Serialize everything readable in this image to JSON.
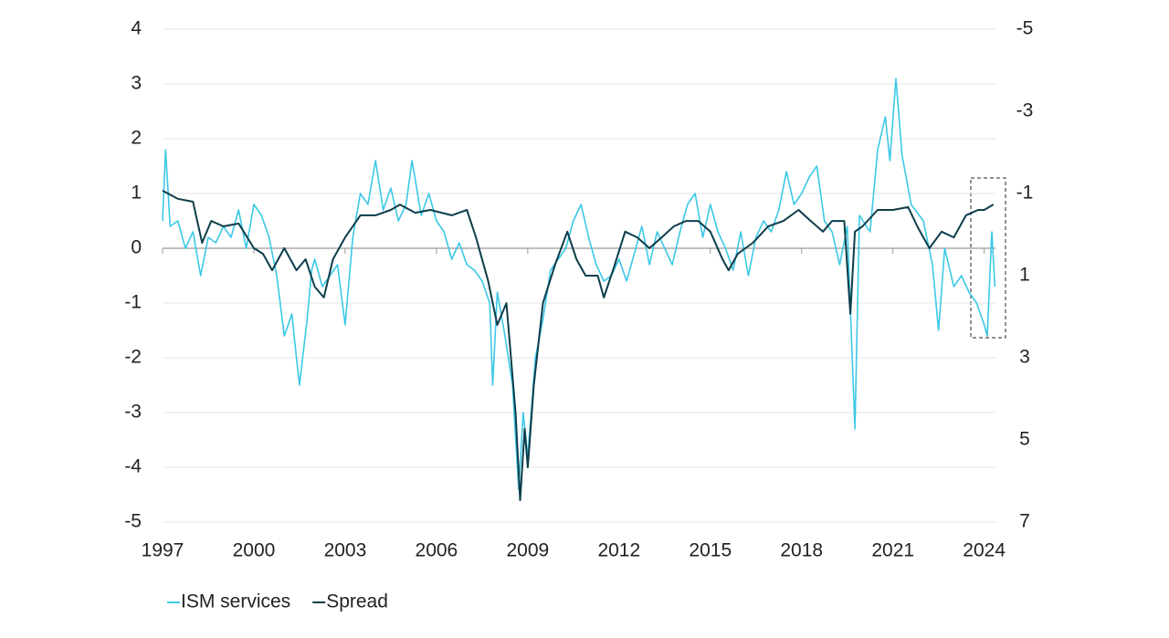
{
  "chart_data": {
    "type": "line",
    "xlim": [
      1997,
      2024.37
    ],
    "xticks": [
      1997,
      2000,
      2003,
      2006,
      2009,
      2012,
      2015,
      2018,
      2021,
      2024
    ],
    "ylim": [
      -5,
      4
    ],
    "yticks": [
      -5,
      -4,
      -3,
      -2,
      -1,
      0,
      1,
      2,
      3,
      4
    ],
    "y2lim": [
      7,
      -5
    ],
    "y2ticks": [
      -5,
      -3,
      -1,
      1,
      3,
      5,
      7
    ],
    "grid": true,
    "series": [
      {
        "name": "ISM services",
        "color": "#3cc8e6",
        "axis": "y",
        "x": [
          1997.0,
          1997.1,
          1997.25,
          1997.5,
          1997.75,
          1998.0,
          1998.25,
          1998.5,
          1998.75,
          1999.0,
          1999.25,
          1999.5,
          1999.75,
          2000.0,
          2000.25,
          2000.5,
          2000.75,
          2001.0,
          2001.25,
          2001.4,
          2001.5,
          2001.75,
          2001.9,
          2002.0,
          2002.25,
          2002.5,
          2002.75,
          2003.0,
          2003.25,
          2003.5,
          2003.75,
          2004.0,
          2004.25,
          2004.5,
          2004.75,
          2005.0,
          2005.2,
          2005.5,
          2005.75,
          2006.0,
          2006.25,
          2006.5,
          2006.75,
          2007.0,
          2007.25,
          2007.5,
          2007.75,
          2007.85,
          2008.0,
          2008.25,
          2008.5,
          2008.7,
          2008.85,
          2009.0,
          2009.25,
          2009.5,
          2009.75,
          2010.0,
          2010.25,
          2010.5,
          2010.75,
          2011.0,
          2011.25,
          2011.5,
          2011.75,
          2012.0,
          2012.25,
          2012.5,
          2012.75,
          2013.0,
          2013.25,
          2013.5,
          2013.75,
          2014.0,
          2014.25,
          2014.5,
          2014.75,
          2015.0,
          2015.25,
          2015.5,
          2015.75,
          2016.0,
          2016.25,
          2016.5,
          2016.75,
          2017.0,
          2017.25,
          2017.5,
          2017.75,
          2018.0,
          2018.25,
          2018.5,
          2018.75,
          2019.0,
          2019.25,
          2019.5,
          2019.75,
          2019.9,
          2020.25,
          2020.5,
          2020.75,
          2020.9,
          2021.1,
          2021.3,
          2021.6,
          2022.0,
          2022.3,
          2022.5,
          2022.7,
          2023.0,
          2023.25,
          2023.5,
          2023.75,
          2024.0,
          2024.1,
          2024.25,
          2024.35
        ],
        "values": [
          0.5,
          1.8,
          0.4,
          0.5,
          0.0,
          0.3,
          -0.5,
          0.2,
          0.1,
          0.4,
          0.2,
          0.7,
          0.0,
          0.8,
          0.6,
          0.2,
          -0.5,
          -1.6,
          -1.2,
          -2.0,
          -2.5,
          -1.3,
          -0.4,
          -0.2,
          -0.7,
          -0.5,
          -0.3,
          -1.4,
          0.2,
          1.0,
          0.8,
          1.6,
          0.7,
          1.1,
          0.5,
          0.8,
          1.6,
          0.6,
          1.0,
          0.5,
          0.3,
          -0.2,
          0.1,
          -0.3,
          -0.4,
          -0.6,
          -1.0,
          -2.5,
          -0.8,
          -1.6,
          -2.5,
          -4.4,
          -3.0,
          -3.8,
          -2.0,
          -1.3,
          -0.4,
          -0.2,
          0.0,
          0.5,
          0.8,
          0.2,
          -0.3,
          -0.6,
          -0.5,
          -0.2,
          -0.6,
          -0.1,
          0.4,
          -0.3,
          0.3,
          0.0,
          -0.3,
          0.3,
          0.8,
          1.0,
          0.2,
          0.8,
          0.3,
          0.0,
          -0.4,
          0.3,
          -0.5,
          0.2,
          0.5,
          0.3,
          0.7,
          1.4,
          0.8,
          1.0,
          1.3,
          1.5,
          0.5,
          0.3,
          -0.3,
          0.4,
          -3.3,
          0.6,
          0.3,
          1.8,
          2.4,
          1.6,
          3.1,
          1.7,
          0.8,
          0.5,
          -0.3,
          -1.5,
          0.0,
          -0.7,
          -0.5,
          -0.8,
          -1.0,
          -1.4,
          -1.6,
          0.3,
          -0.7
        ]
      },
      {
        "name": "Spread",
        "color": "#0d3d4a",
        "axis": "y2",
        "x": [
          1997.0,
          1997.5,
          1998.0,
          1998.3,
          1998.6,
          1999.0,
          1999.5,
          2000.0,
          2000.3,
          2000.6,
          2001.0,
          2001.4,
          2001.7,
          2002.0,
          2002.3,
          2002.6,
          2003.0,
          2003.5,
          2004.0,
          2004.5,
          2004.8,
          2005.3,
          2005.8,
          2006.5,
          2007.0,
          2007.3,
          2007.7,
          2008.0,
          2008.3,
          2008.6,
          2008.75,
          2008.9,
          2009.0,
          2009.2,
          2009.5,
          2009.9,
          2010.3,
          2010.6,
          2010.9,
          2011.3,
          2011.5,
          2011.8,
          2012.2,
          2012.6,
          2013.0,
          2013.4,
          2013.8,
          2014.2,
          2014.6,
          2015.0,
          2015.4,
          2015.6,
          2015.9,
          2016.4,
          2016.9,
          2017.4,
          2017.9,
          2018.3,
          2018.7,
          2019.0,
          2019.4,
          2019.6,
          2019.75,
          2020.0,
          2020.5,
          2021.0,
          2021.5,
          2021.8,
          2022.0,
          2022.2,
          2022.6,
          2023.0,
          2023.4,
          2023.8,
          2024.0,
          2024.3
        ],
        "values": [
          -1.07,
          -0.87,
          -0.8,
          0.2,
          -0.33,
          -0.2,
          -0.27,
          0.33,
          0.47,
          0.87,
          0.33,
          0.87,
          0.6,
          1.27,
          1.53,
          0.6,
          0.07,
          -0.47,
          -0.47,
          -0.6,
          -0.73,
          -0.53,
          -0.6,
          -0.47,
          -0.6,
          0.07,
          1.13,
          2.2,
          1.67,
          4.33,
          6.47,
          4.73,
          5.67,
          3.67,
          1.67,
          0.73,
          -0.07,
          0.6,
          1.0,
          1.0,
          1.53,
          0.87,
          -0.07,
          0.07,
          0.33,
          0.07,
          -0.2,
          -0.33,
          -0.33,
          -0.07,
          0.6,
          0.87,
          0.47,
          0.2,
          -0.2,
          -0.33,
          -0.6,
          -0.33,
          -0.07,
          -0.33,
          -0.33,
          1.93,
          -0.07,
          -0.2,
          -0.6,
          -0.6,
          -0.67,
          -0.2,
          0.07,
          0.33,
          -0.07,
          0.07,
          -0.47,
          -0.6,
          -0.6,
          -0.73
        ]
      }
    ]
  }
}
